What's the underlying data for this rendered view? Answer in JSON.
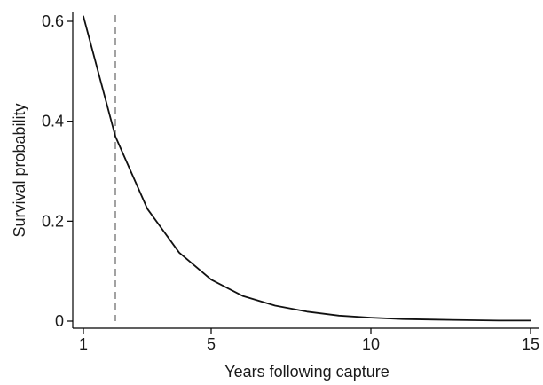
{
  "chart_data": {
    "type": "line",
    "title": "",
    "xlabel": "Years following capture",
    "ylabel": "Survival probability",
    "xlim": [
      1,
      15
    ],
    "ylim": [
      0,
      0.62
    ],
    "x_ticks": [
      {
        "value": 1,
        "label": "1"
      },
      {
        "value": 5,
        "label": "5"
      },
      {
        "value": 10,
        "label": "10"
      },
      {
        "value": 15,
        "label": "15"
      }
    ],
    "y_ticks": [
      {
        "value": 0,
        "label": "0"
      },
      {
        "value": 0.2,
        "label": "0.2"
      },
      {
        "value": 0.4,
        "label": "0.4"
      },
      {
        "value": 0.6,
        "label": "0.6"
      }
    ],
    "grid": false,
    "legend": "none",
    "reference_line": {
      "x": 2,
      "style": "dashed",
      "color": "#7a7a7a"
    },
    "series": [
      {
        "color": "#111111",
        "x": [
          1,
          2,
          3,
          4,
          5,
          6,
          7,
          8,
          9,
          10,
          11,
          12,
          13,
          14,
          15
        ],
        "y": [
          0.61,
          0.37,
          0.225,
          0.137,
          0.083,
          0.05,
          0.031,
          0.019,
          0.011,
          0.007,
          0.004,
          0.003,
          0.002,
          0.001,
          0.001
        ]
      }
    ]
  }
}
